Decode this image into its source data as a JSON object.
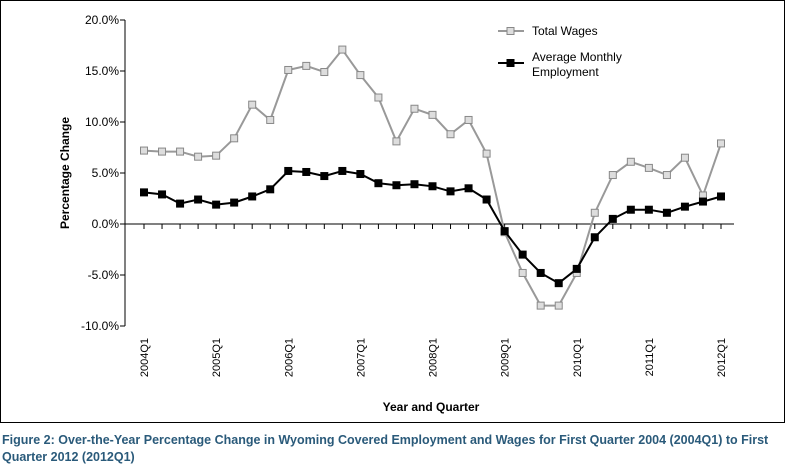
{
  "caption": {
    "label": "Figure 2:",
    "text": " Over-the-Year Percentage Change in Wyoming Covered Employment and Wages for First Quarter 2004 (2004Q1) to First Quarter 2012 (2012Q1)"
  },
  "colors": {
    "total_wages_line": "#999999",
    "total_wages_marker_fill": "#dddddd",
    "employment_line": "#000000",
    "employment_marker_fill": "#000000",
    "caption_text": "#2a5a7a"
  },
  "chart_data": {
    "type": "line",
    "title": "",
    "xlabel": "Year and Quarter",
    "ylabel": "Percentage Change",
    "ylim": [
      -10,
      20
    ],
    "yticks": [
      "20.0%",
      "15.0%",
      "10.0%",
      "5.0%",
      "0.0%",
      "-5.0%",
      "-10.0%"
    ],
    "ytick_values": [
      20,
      15,
      10,
      5,
      0,
      -5,
      -10
    ],
    "x": [
      "2004Q1",
      "2004Q2",
      "2004Q3",
      "2004Q4",
      "2005Q1",
      "2005Q2",
      "2005Q3",
      "2005Q4",
      "2006Q1",
      "2006Q2",
      "2006Q3",
      "2006Q4",
      "2007Q1",
      "2007Q2",
      "2007Q3",
      "2007Q4",
      "2008Q1",
      "2008Q2",
      "2008Q3",
      "2008Q4",
      "2009Q1",
      "2009Q2",
      "2009Q3",
      "2009Q4",
      "2010Q1",
      "2010Q2",
      "2010Q3",
      "2010Q4",
      "2011Q1",
      "2011Q2",
      "2011Q3",
      "2011Q4",
      "2012Q1"
    ],
    "xtick_labels": [
      {
        "index": 0,
        "label": "2004Q1"
      },
      {
        "index": 4,
        "label": "2005Q1"
      },
      {
        "index": 8,
        "label": "2006Q1"
      },
      {
        "index": 12,
        "label": "2007Q1"
      },
      {
        "index": 16,
        "label": "2008Q1"
      },
      {
        "index": 20,
        "label": "2009Q1"
      },
      {
        "index": 24,
        "label": "2010Q1"
      },
      {
        "index": 28,
        "label": "2011Q1"
      },
      {
        "index": 32,
        "label": "2012Q1"
      }
    ],
    "legend_position": "top-right",
    "series": [
      {
        "name": "Total Wages",
        "marker": "open-square",
        "values": [
          7.2,
          7.1,
          7.1,
          6.6,
          6.7,
          8.4,
          11.7,
          10.2,
          15.1,
          15.5,
          14.9,
          17.1,
          14.6,
          12.4,
          8.1,
          11.3,
          10.7,
          8.8,
          10.2,
          6.9,
          -0.8,
          -4.8,
          -8.0,
          -8.0,
          -4.8,
          1.1,
          4.8,
          6.1,
          5.5,
          4.8,
          6.5,
          2.8,
          7.9
        ]
      },
      {
        "name": "Average Monthly Employment",
        "name_lines": [
          "Average Monthly",
          "Employment"
        ],
        "marker": "filled-square",
        "values": [
          3.1,
          2.9,
          2.0,
          2.4,
          1.9,
          2.1,
          2.7,
          3.4,
          5.2,
          5.1,
          4.7,
          5.2,
          4.9,
          4.0,
          3.8,
          3.9,
          3.7,
          3.2,
          3.5,
          2.4,
          -0.7,
          -3.0,
          -4.8,
          -5.8,
          -4.4,
          -1.3,
          0.5,
          1.4,
          1.4,
          1.1,
          1.7,
          2.2,
          2.7
        ]
      }
    ]
  }
}
